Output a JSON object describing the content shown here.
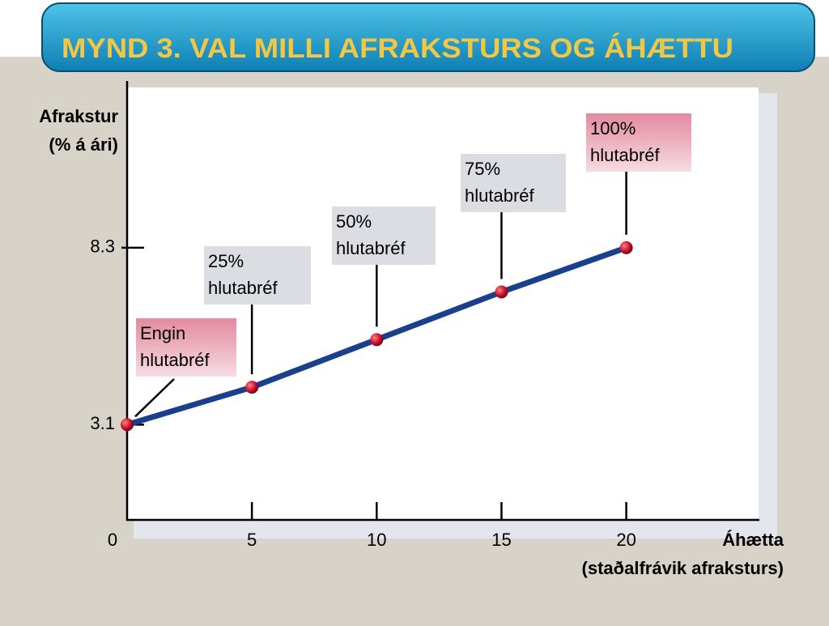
{
  "title": "MYND 3. VAL MILLI AFRAKSTURS OG ÁHÆTTU",
  "chart_data": {
    "type": "line",
    "x_label": [
      "Áhætta",
      "(staðalfrávik afraksturs)"
    ],
    "y_label": [
      "Afrakstur",
      "(% á ári)"
    ],
    "x": [
      0,
      5,
      10,
      15,
      20
    ],
    "series": [
      {
        "color": "#1b3f8f",
        "values": [
          3.1,
          4.2,
          5.6,
          7.0,
          8.3
        ]
      }
    ],
    "annotations": [
      {
        "lines": [
          "Engin",
          "hlutabréf"
        ],
        "color": "#e9a9b6"
      },
      {
        "lines": [
          "25%",
          "hlutabréf"
        ],
        "color": "#dcdde3"
      },
      {
        "lines": [
          "50%",
          "hlutabréf"
        ],
        "color": "#dcdde3"
      },
      {
        "lines": [
          "75%",
          "hlutabréf"
        ],
        "color": "#dcdde3"
      },
      {
        "lines": [
          "100%",
          "hlutabréf"
        ],
        "color": "#e9a9b6"
      }
    ],
    "xlim": [
      0,
      25.3
    ],
    "xticks": [
      0,
      5,
      10,
      15,
      20
    ],
    "ylim": [
      0.3,
      13.2
    ],
    "yticks": [
      3.1,
      8.3
    ]
  }
}
